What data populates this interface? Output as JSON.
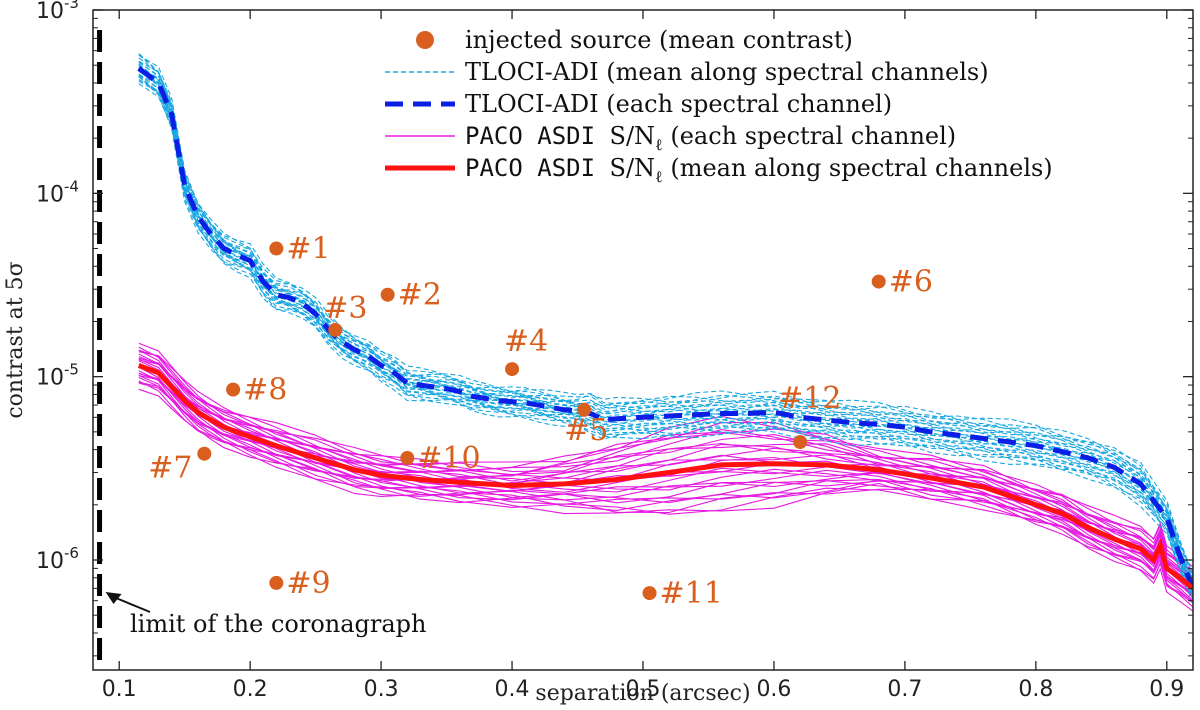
{
  "chart_data": {
    "type": "line",
    "xlabel": "separation (arcsec)",
    "ylabel": "contrast at 5σ",
    "xlim": [
      0.08,
      0.92
    ],
    "ylim_log10": [
      -6.6,
      -3
    ],
    "y_scale": "log",
    "x_ticks": [
      {
        "v": 0.1,
        "label": "0.1"
      },
      {
        "v": 0.2,
        "label": "0.2"
      },
      {
        "v": 0.3,
        "label": "0.3"
      },
      {
        "v": 0.4,
        "label": "0.4"
      },
      {
        "v": 0.5,
        "label": "0.5"
      },
      {
        "v": 0.6,
        "label": "0.6"
      },
      {
        "v": 0.7,
        "label": "0.7"
      },
      {
        "v": 0.8,
        "label": "0.8"
      },
      {
        "v": 0.9,
        "label": "0.9"
      }
    ],
    "y_ticks": [
      {
        "v": -3,
        "base": "10",
        "exp": "-3"
      },
      {
        "v": -4,
        "base": "10",
        "exp": "-4"
      },
      {
        "v": -5,
        "base": "10",
        "exp": "-5"
      },
      {
        "v": -6,
        "base": "10",
        "exp": "-6"
      }
    ],
    "coronagraph_limit_x": 0.085,
    "coronagraph_annotation": "limit of the coronagraph",
    "legend": {
      "placement": "top-right",
      "entries": [
        {
          "id": "src",
          "text": "injected source (mean contrast)"
        },
        {
          "id": "tloci_thin",
          "text": "TLOCI-ADI (mean along spectral channels)"
        },
        {
          "id": "tloci_thick",
          "text": "TLOCI-ADI (each spectral channel)"
        },
        {
          "id": "paco_thin",
          "mono": "PACO ASDI",
          "text": "S/N",
          "sub": "ℓ",
          "tail": " (each spectral channel)"
        },
        {
          "id": "paco_thick",
          "mono": "PACO ASDI",
          "text": "S/N",
          "sub": "ℓ",
          "tail": " (mean along spectral channels)"
        }
      ]
    },
    "colors": {
      "source": "#d95f1e",
      "tloci_thin": "#1aa7e0",
      "tloci_mean": "#0a1ee6",
      "paco_thin": "#e61ae0",
      "paco_mean": "#ff1010"
    },
    "sources": [
      {
        "label": "#1",
        "x": 0.22,
        "y": 5e-05
      },
      {
        "label": "#2",
        "x": 0.305,
        "y": 2.8e-05
      },
      {
        "label": "#3",
        "x": 0.265,
        "y": 1.8e-05
      },
      {
        "label": "#4",
        "x": 0.4,
        "y": 1.1e-05
      },
      {
        "label": "#5",
        "x": 0.455,
        "y": 6.6e-06
      },
      {
        "label": "#6",
        "x": 0.68,
        "y": 3.3e-05
      },
      {
        "label": "#7",
        "x": 0.165,
        "y": 3.8e-06
      },
      {
        "label": "#8",
        "x": 0.187,
        "y": 8.5e-06
      },
      {
        "label": "#9",
        "x": 0.22,
        "y": 7.5e-07
      },
      {
        "label": "#10",
        "x": 0.32,
        "y": 3.6e-06
      },
      {
        "label": "#11",
        "x": 0.505,
        "y": 6.6e-07
      },
      {
        "label": "#12",
        "x": 0.62,
        "y": 4.4e-06
      }
    ],
    "series": [
      {
        "name": "TLOCI-ADI mean",
        "x": [
          0.115,
          0.13,
          0.14,
          0.15,
          0.16,
          0.17,
          0.18,
          0.19,
          0.2,
          0.21,
          0.22,
          0.23,
          0.24,
          0.25,
          0.26,
          0.27,
          0.28,
          0.29,
          0.3,
          0.31,
          0.32,
          0.33,
          0.34,
          0.35,
          0.36,
          0.37,
          0.38,
          0.39,
          0.4,
          0.41,
          0.42,
          0.43,
          0.44,
          0.45,
          0.46,
          0.47,
          0.48,
          0.5,
          0.52,
          0.54,
          0.56,
          0.58,
          0.6,
          0.62,
          0.64,
          0.66,
          0.68,
          0.7,
          0.72,
          0.74,
          0.76,
          0.78,
          0.8,
          0.82,
          0.84,
          0.86,
          0.88,
          0.9,
          0.91,
          0.92
        ],
        "y": [
          0.00048,
          0.0004,
          0.00027,
          0.00011,
          7.5e-05,
          6e-05,
          5e-05,
          4.6e-05,
          4.3e-05,
          3.3e-05,
          2.8e-05,
          2.7e-05,
          2.5e-05,
          2.2e-05,
          1.8e-05,
          1.55e-05,
          1.4e-05,
          1.3e-05,
          1.15e-05,
          1.05e-05,
          9.2e-06,
          9e-06,
          8.8e-06,
          8.6e-06,
          8.3e-06,
          7.8e-06,
          7.6e-06,
          7.4e-06,
          7.3e-06,
          7.2e-06,
          7e-06,
          6.8e-06,
          6.6e-06,
          6.5e-06,
          6.3e-06,
          5.8e-06,
          5.9e-06,
          6e-06,
          6.1e-06,
          6.2e-06,
          6.3e-06,
          6.3e-06,
          6.4e-06,
          6e-06,
          5.8e-06,
          5.6e-06,
          5.5e-06,
          5.3e-06,
          5e-06,
          4.8e-06,
          4.6e-06,
          4.4e-06,
          4.2e-06,
          3.9e-06,
          3.6e-06,
          3.2e-06,
          2.6e-06,
          1.7e-06,
          1.05e-06,
          7e-07
        ]
      },
      {
        "name": "PACO ASDI mean",
        "x": [
          0.115,
          0.13,
          0.14,
          0.15,
          0.16,
          0.17,
          0.18,
          0.2,
          0.22,
          0.25,
          0.28,
          0.3,
          0.33,
          0.36,
          0.4,
          0.44,
          0.48,
          0.52,
          0.56,
          0.6,
          0.64,
          0.68,
          0.72,
          0.76,
          0.8,
          0.82,
          0.84,
          0.86,
          0.88,
          0.89,
          0.895,
          0.9,
          0.91,
          0.92
        ],
        "y": [
          1.15e-05,
          1.05e-05,
          8.8e-06,
          7.4e-06,
          6.4e-06,
          5.8e-06,
          5.3e-06,
          4.7e-06,
          4.2e-06,
          3.6e-06,
          3.1e-06,
          2.9e-06,
          2.75e-06,
          2.65e-06,
          2.55e-06,
          2.6e-06,
          2.75e-06,
          3e-06,
          3.3e-06,
          3.35e-06,
          3.3e-06,
          3.1e-06,
          2.8e-06,
          2.5e-06,
          2e-06,
          1.8e-06,
          1.5e-06,
          1.3e-06,
          1.15e-06,
          1e-06,
          1.2e-06,
          9e-07,
          8e-07,
          7e-07
        ]
      }
    ]
  }
}
